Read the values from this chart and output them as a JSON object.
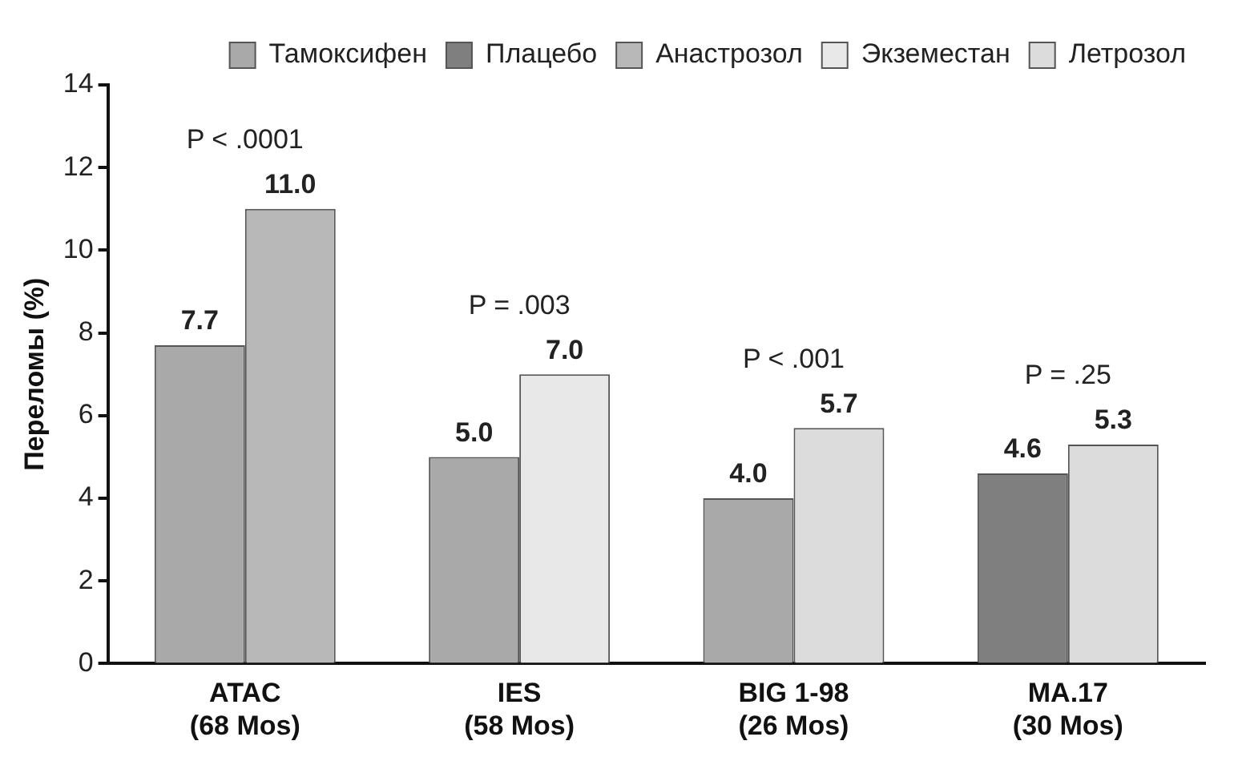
{
  "chart_data": {
    "type": "bar",
    "ylabel": "Переломы (%)",
    "categories": [
      "ATAC\n(68 Mos)",
      "IES\n(58 Mos)",
      "BIG 1-98\n(26 Mos)",
      "MA.17\n(30 Mos)"
    ],
    "series": [
      {
        "name": "Тамоксифен",
        "color": "#a9a9a9",
        "values": [
          7.7,
          5.0,
          4.0,
          null
        ],
        "value_labels": [
          "7.7",
          "5.0",
          "4.0",
          null
        ]
      },
      {
        "name": "Плацебо",
        "color": "#7f7f7f",
        "values": [
          null,
          null,
          null,
          4.6
        ],
        "value_labels": [
          null,
          null,
          null,
          "4.6"
        ]
      },
      {
        "name": "Анастрозол",
        "color": "#b8b8b8",
        "values": [
          11.0,
          null,
          null,
          null
        ],
        "value_labels": [
          "11.0",
          null,
          null,
          null
        ]
      },
      {
        "name": "Экземестан",
        "color": "#e8e8e8",
        "values": [
          null,
          7.0,
          null,
          null
        ],
        "value_labels": [
          null,
          "7.0",
          null,
          null
        ]
      },
      {
        "name": "Летрозол",
        "color": "#dcdcdc",
        "values": [
          null,
          null,
          5.7,
          5.3
        ],
        "value_labels": [
          null,
          null,
          "5.7",
          "5.3"
        ]
      }
    ],
    "ylim": [
      0,
      14
    ],
    "yticks": [
      0,
      2,
      4,
      6,
      8,
      10,
      12,
      14
    ],
    "grid": false,
    "legend": "top right",
    "annotations": [
      "P < .0001",
      "P = .003",
      "P < .001",
      "P = .25"
    ]
  }
}
